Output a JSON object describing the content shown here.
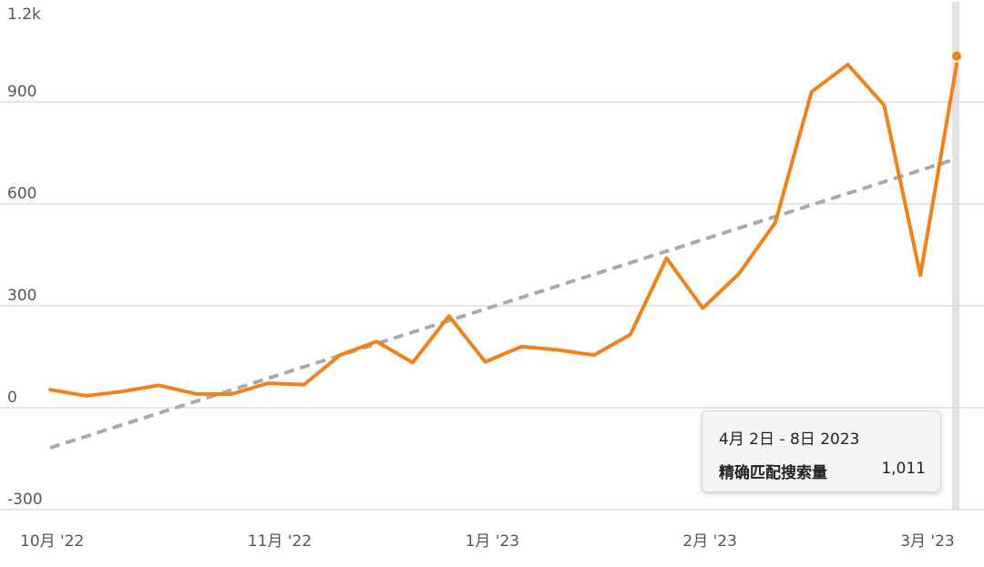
{
  "chart_data": {
    "type": "line",
    "title": "",
    "xlabel": "",
    "ylabel": "",
    "ylim": [
      -300,
      1200
    ],
    "y_ticks": [
      "1.2k",
      "900",
      "600",
      "300",
      "0",
      "-300"
    ],
    "y_tick_values": [
      1200,
      900,
      600,
      300,
      0,
      -300
    ],
    "x_tick_labels": [
      "10月 '22",
      "11月 '22",
      "1月 '23",
      "2月 '23",
      "3月 '23"
    ],
    "x_tick_indices": [
      0,
      6,
      12,
      18,
      24
    ],
    "grid": true,
    "series": [
      {
        "name": "精确匹配搜索量",
        "color": "#f28119",
        "values": [
          53,
          35,
          48,
          66,
          41,
          40,
          72,
          68,
          155,
          195,
          133,
          270,
          135,
          180,
          170,
          155,
          215,
          440,
          293,
          395,
          545,
          930,
          1010,
          890,
          390,
          1011
        ]
      },
      {
        "name": "",
        "style": "dashed-trend",
        "color": "#aaaaaa",
        "values_start_end": [
          -118,
          733
        ]
      }
    ],
    "highlight_index": 25
  },
  "tooltip": {
    "title": "4月 2日 - 8日 2023",
    "series_name": "精确匹配搜索量",
    "value": "1,011"
  },
  "colors": {
    "line": "#f28119",
    "trend": "#aaaaaa",
    "grid": "#d6d6d6",
    "cursor": "#e3e3e3"
  }
}
